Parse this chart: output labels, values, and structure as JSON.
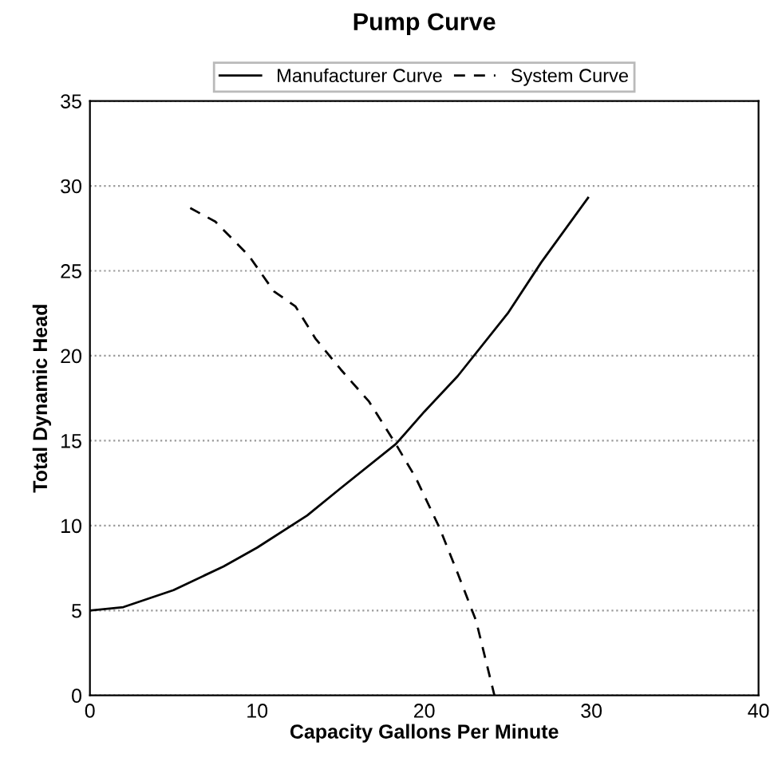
{
  "chart_data": {
    "type": "line",
    "title": "Pump Curve",
    "xlabel": "Capacity Gallons Per Minute",
    "ylabel": "Total Dynamic Head",
    "xlim": [
      0,
      40
    ],
    "xticks": [
      0,
      10,
      20,
      30,
      40
    ],
    "ylim": [
      0,
      35
    ],
    "yticks": [
      0,
      5,
      10,
      15,
      20,
      25,
      30,
      35
    ],
    "grid": "y",
    "legend": "top",
    "marker": "none",
    "series": [
      {
        "name": "Manufacturer Curve",
        "color": "#000000",
        "line_style": "solid",
        "x": [
          0,
          2,
          5,
          8,
          10,
          13,
          15,
          18.3,
          20,
          22,
          25,
          27,
          29.8
        ],
        "values": [
          5,
          5.2,
          6.2,
          7.6,
          8.7,
          10.6,
          12.2,
          14.8,
          16.7,
          18.8,
          22.5,
          25.5,
          29.3
        ]
      },
      {
        "name": "System Curve",
        "color": "#000000",
        "line_style": "dashed",
        "x": [
          6,
          7.5,
          9.5,
          11,
          12.3,
          13.5,
          15,
          16.7,
          18.3,
          19.5,
          20.9,
          22,
          23.1,
          24.2
        ],
        "values": [
          28.7,
          27.9,
          25.9,
          23.8,
          22.9,
          21,
          19.2,
          17.3,
          14.8,
          12.8,
          9.9,
          7.2,
          4.4,
          0
        ]
      }
    ]
  }
}
